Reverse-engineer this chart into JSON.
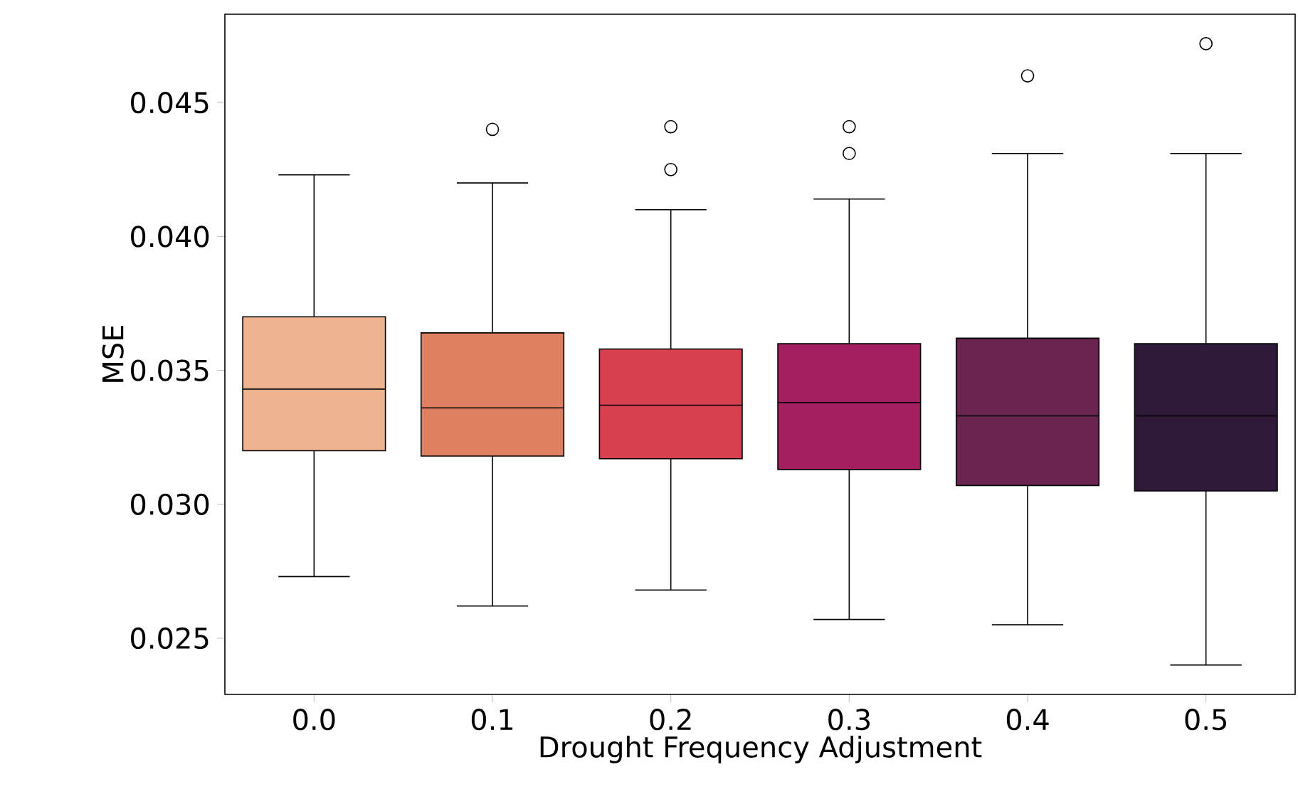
{
  "chart_data": {
    "type": "box",
    "xlabel": "Drought Frequency Adjustment",
    "ylabel": "MSE",
    "categories": [
      "0.0",
      "0.1",
      "0.2",
      "0.3",
      "0.4",
      "0.5"
    ],
    "colors": [
      "#ecb48f",
      "#e08062",
      "#d6404f",
      "#a22060",
      "#6a2450",
      "#2e1a38"
    ],
    "boxes": [
      {
        "low": 0.0273,
        "q1": 0.032,
        "median": 0.0343,
        "q3": 0.037,
        "high": 0.0423
      },
      {
        "low": 0.0262,
        "q1": 0.0318,
        "median": 0.0336,
        "q3": 0.0364,
        "high": 0.042,
        "outliers": [
          0.044
        ]
      },
      {
        "low": 0.0268,
        "q1": 0.0317,
        "median": 0.0337,
        "q3": 0.0358,
        "high": 0.041,
        "outliers": [
          0.0441,
          0.0425
        ]
      },
      {
        "low": 0.0257,
        "q1": 0.0313,
        "median": 0.0338,
        "q3": 0.036,
        "high": 0.0414,
        "outliers": [
          0.0441,
          0.0431
        ]
      },
      {
        "low": 0.0255,
        "q1": 0.0307,
        "median": 0.0333,
        "q3": 0.0362,
        "high": 0.0431,
        "outliers": [
          0.046
        ]
      },
      {
        "low": 0.024,
        "q1": 0.0305,
        "median": 0.0333,
        "q3": 0.036,
        "high": 0.0431,
        "outliers": [
          0.0472
        ]
      }
    ],
    "ylim": [
      0.0229,
      0.0483
    ],
    "yticks": [
      {
        "value": 0.025,
        "label": "0.025"
      },
      {
        "value": 0.03,
        "label": "0.030"
      },
      {
        "value": 0.035,
        "label": "0.035"
      },
      {
        "value": 0.04,
        "label": "0.040"
      },
      {
        "value": 0.045,
        "label": "0.045"
      }
    ],
    "marker": "circle"
  }
}
